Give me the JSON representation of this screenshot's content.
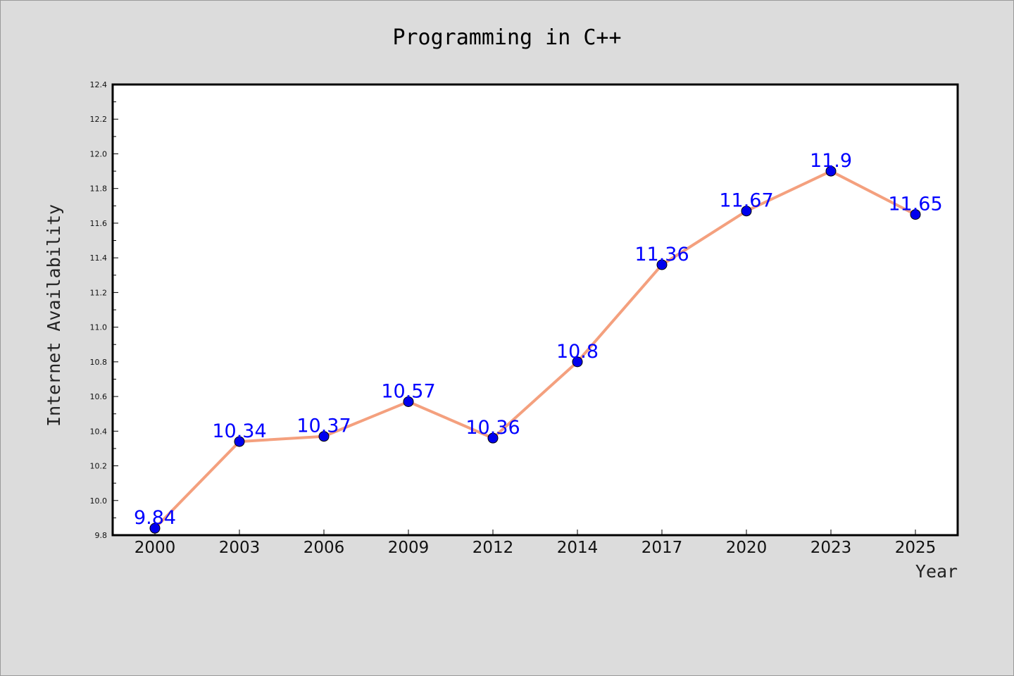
{
  "chart_data": {
    "type": "line",
    "title": "Programming in C++",
    "xlabel": "Year",
    "ylabel": "Internet Availability",
    "categories": [
      "2000",
      "2003",
      "2006",
      "2009",
      "2012",
      "2014",
      "2017",
      "2020",
      "2023",
      "2025"
    ],
    "series": [
      {
        "values": [
          9.84,
          10.34,
          10.37,
          10.57,
          10.36,
          10.8,
          11.36,
          11.67,
          11.9,
          11.65
        ],
        "data_labels": [
          "9.84",
          "10.34",
          "10.37",
          "10.57",
          "10.36",
          "10.8",
          "11.36",
          "11.67",
          "11.9",
          "11.65"
        ],
        "line_color": "#f4a07e",
        "marker_color": "#0000ee",
        "label_color": "#0000ff"
      }
    ],
    "ylim": [
      9.8,
      12.4
    ],
    "yticks": [
      "9.8",
      "10.0",
      "10.2",
      "10.4",
      "10.6",
      "10.8",
      "11.0",
      "11.2",
      "11.4",
      "11.6",
      "11.8",
      "12.0",
      "12.2",
      "12.4"
    ],
    "grid": false,
    "legend": "none",
    "background_color": "#dcdcdc",
    "plot_background_color": "#ffffff"
  }
}
